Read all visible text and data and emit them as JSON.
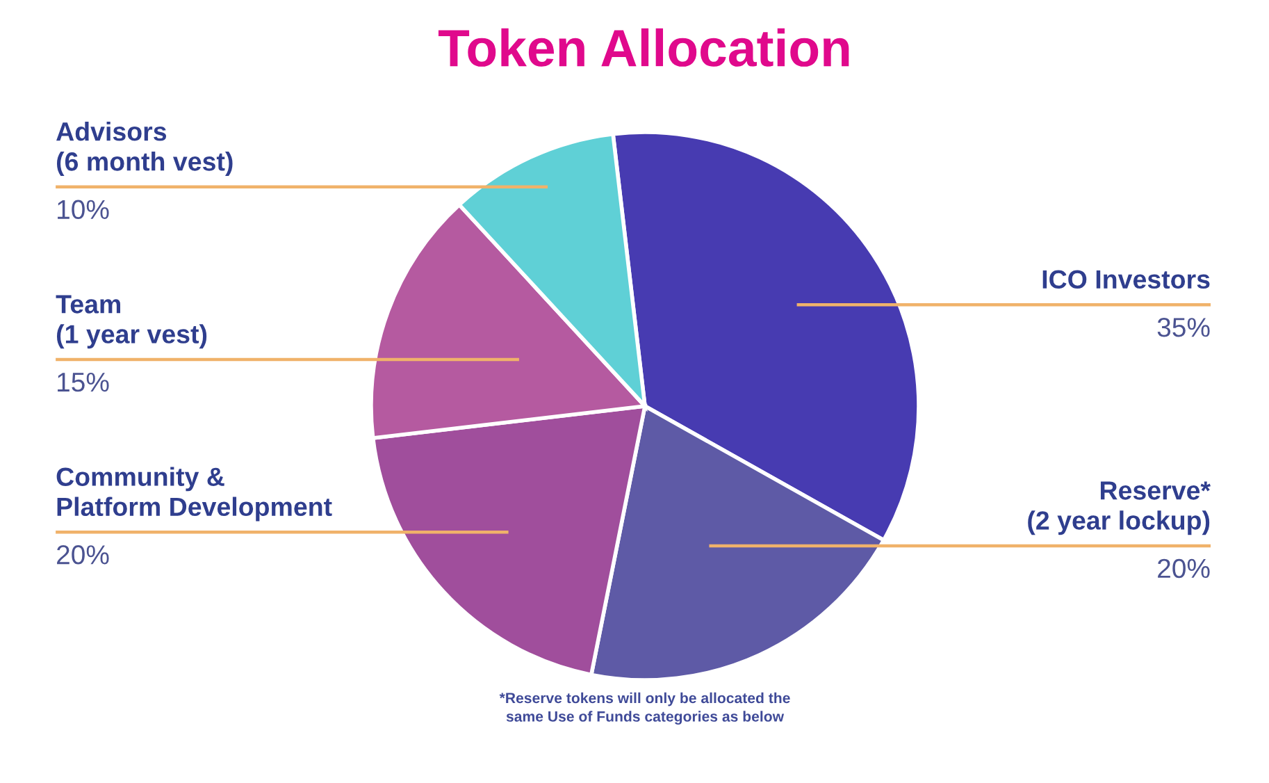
{
  "chart_data": {
    "type": "pie",
    "title": "Token Allocation",
    "categories": [
      "ICO Investors",
      "Reserve*\n(2 year lockup)",
      "Community &\nPlatform Development",
      "Team\n(1 year vest)",
      "Advisors\n(6 month vest)"
    ],
    "values": [
      35,
      20,
      20,
      15,
      10
    ],
    "colors": [
      "#473bb1",
      "#5e5aa6",
      "#a04e9c",
      "#b55aa0",
      "#5fd0d6"
    ],
    "value_labels": [
      "35%",
      "20%",
      "20%",
      "15%",
      "10%"
    ],
    "annotations": [
      "*Reserve tokens will only be allocated the\nsame Use of Funds categories as below"
    ]
  }
}
